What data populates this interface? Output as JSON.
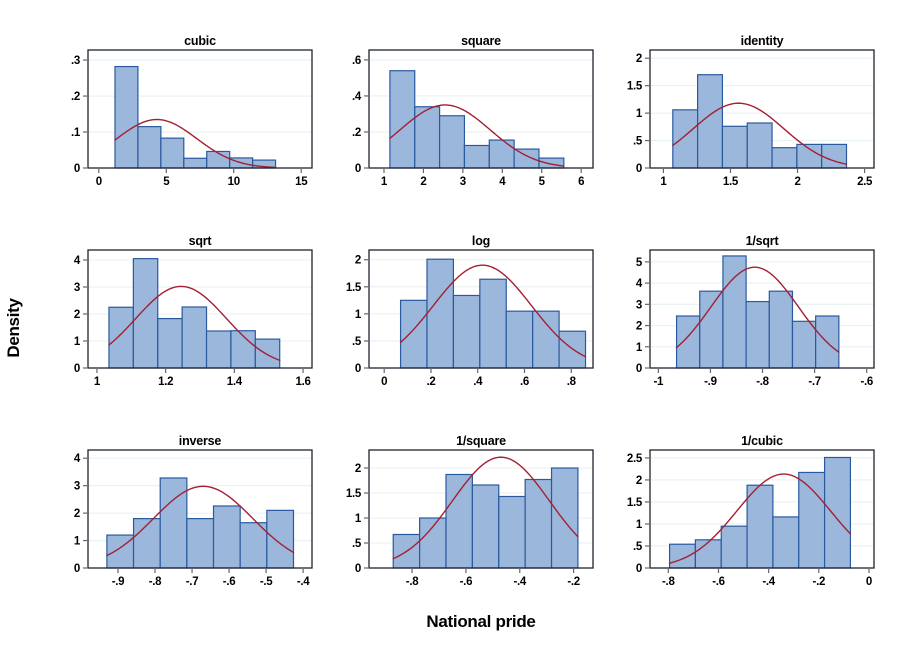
{
  "figure": {
    "ylabel": "Density",
    "xlabel": "National pride",
    "background": "#ffffff",
    "colors": {
      "bar_fill": "#9cb7dc",
      "bar_stroke": "#2a5a9e",
      "curve": "#a32033",
      "grid": "#e8f1f3",
      "frame": "#20242e",
      "tick": "#666666",
      "text": "#000000"
    }
  },
  "chart_data": [
    {
      "type": "histogram",
      "title": "cubic",
      "bin_start": 1.2,
      "bin_width": 1.7,
      "bar_heights": [
        0.282,
        0.115,
        0.083,
        0.027,
        0.046,
        0.028,
        0.022
      ],
      "normal_curve": {
        "mean": 4.3,
        "sd": 2.96,
        "peak_density": 0.135
      },
      "xlim": [
        -0.8,
        15.8
      ],
      "ymax": 0.328,
      "xticks": [
        0,
        5,
        10,
        15
      ],
      "xtick_labels": [
        "0",
        "5",
        "10",
        "15"
      ],
      "yticks": [
        0,
        0.1,
        0.2,
        0.3
      ],
      "ytick_labels": [
        "0",
        ".1",
        ".2",
        ".3"
      ]
    },
    {
      "type": "histogram",
      "title": "square",
      "bin_start": 1.15,
      "bin_width": 0.63,
      "bar_heights": [
        0.54,
        0.34,
        0.29,
        0.125,
        0.155,
        0.105,
        0.055
      ],
      "normal_curve": {
        "mean": 2.55,
        "sd": 1.14,
        "peak_density": 0.35
      },
      "xlim": [
        0.62,
        6.3
      ],
      "ymax": 0.655,
      "xticks": [
        1,
        2,
        3,
        4,
        5,
        6
      ],
      "xtick_labels": [
        "1",
        "2",
        "3",
        "4",
        "5",
        "6"
      ],
      "yticks": [
        0,
        0.2,
        0.4,
        0.6
      ],
      "ytick_labels": [
        "0",
        ".2",
        ".4",
        ".6"
      ]
    },
    {
      "type": "histogram",
      "title": "identity",
      "bin_start": 1.07,
      "bin_width": 0.185,
      "bar_heights": [
        1.06,
        1.7,
        0.76,
        0.82,
        0.37,
        0.43,
        0.43
      ],
      "normal_curve": {
        "mean": 1.56,
        "sd": 0.338,
        "peak_density": 1.18
      },
      "xlim": [
        0.9,
        2.57
      ],
      "ymax": 2.15,
      "xticks": [
        1,
        1.5,
        2,
        2.5
      ],
      "xtick_labels": [
        "1",
        "1.5",
        "2",
        "2.5"
      ],
      "yticks": [
        0,
        0.5,
        1,
        1.5,
        2
      ],
      "ytick_labels": [
        "0",
        ".5",
        "1",
        "1.5",
        "2"
      ]
    },
    {
      "type": "histogram",
      "title": "sqrt",
      "bin_start": 1.035,
      "bin_width": 0.071,
      "bar_heights": [
        2.25,
        4.05,
        1.83,
        2.26,
        1.37,
        1.38,
        1.07
      ],
      "normal_curve": {
        "mean": 1.245,
        "sd": 0.132,
        "peak_density": 3.02
      },
      "xlim": [
        0.974,
        1.626
      ],
      "ymax": 4.37,
      "xticks": [
        1,
        1.2,
        1.4,
        1.6
      ],
      "xtick_labels": [
        "1",
        "1.2",
        "1.4",
        "1.6"
      ],
      "yticks": [
        0,
        1,
        2,
        3,
        4
      ],
      "ytick_labels": [
        "0",
        "1",
        "2",
        "3",
        "4"
      ]
    },
    {
      "type": "histogram",
      "title": "log",
      "bin_start": 0.07,
      "bin_width": 0.113,
      "bar_heights": [
        1.25,
        2.01,
        1.34,
        1.64,
        1.05,
        1.05,
        0.68
      ],
      "normal_curve": {
        "mean": 0.42,
        "sd": 0.21,
        "peak_density": 1.9
      },
      "xlim": [
        -0.065,
        0.893
      ],
      "ymax": 2.18,
      "xticks": [
        0,
        0.2,
        0.4,
        0.6,
        0.8
      ],
      "xtick_labels": [
        "0",
        ".2",
        ".4",
        ".6",
        ".8"
      ],
      "yticks": [
        0,
        0.5,
        1,
        1.5,
        2
      ],
      "ytick_labels": [
        "0",
        ".5",
        "1",
        "1.5",
        "2"
      ]
    },
    {
      "type": "histogram",
      "title": "1/sqrt",
      "bin_start": -0.965,
      "bin_width": 0.0445,
      "bar_heights": [
        2.45,
        3.62,
        5.28,
        3.13,
        3.62,
        2.2,
        2.45
      ],
      "normal_curve": {
        "mean": -0.815,
        "sd": 0.084,
        "peak_density": 4.75
      },
      "xlim": [
        -1.016,
        -0.586
      ],
      "ymax": 5.56,
      "xticks": [
        -1,
        -0.9,
        -0.8,
        -0.7,
        -0.6
      ],
      "xtick_labels": [
        "-1",
        "-.9",
        "-.8",
        "-.7",
        "-.6"
      ],
      "yticks": [
        0,
        1,
        2,
        3,
        4,
        5
      ],
      "ytick_labels": [
        "0",
        "1",
        "2",
        "3",
        "4",
        "5"
      ]
    },
    {
      "type": "histogram",
      "title": "inverse",
      "bin_start": -0.93,
      "bin_width": 0.072,
      "bar_heights": [
        1.2,
        1.8,
        3.28,
        1.8,
        2.26,
        1.65,
        2.1
      ],
      "normal_curve": {
        "mean": -0.67,
        "sd": 0.134,
        "peak_density": 2.97
      },
      "xlim": [
        -0.981,
        -0.376
      ],
      "ymax": 4.3,
      "xticks": [
        -0.9,
        -0.8,
        -0.7,
        -0.6,
        -0.5,
        -0.4
      ],
      "xtick_labels": [
        "-.9",
        "-.8",
        "-.7",
        "-.6",
        "-.5",
        "-.4"
      ],
      "yticks": [
        0,
        1,
        2,
        3,
        4
      ],
      "ytick_labels": [
        "0",
        "1",
        "2",
        "3",
        "4"
      ]
    },
    {
      "type": "histogram",
      "title": "1/square",
      "bin_start": -0.87,
      "bin_width": 0.098,
      "bar_heights": [
        0.67,
        1.0,
        1.87,
        1.66,
        1.43,
        1.77,
        2.0
      ],
      "normal_curve": {
        "mean": -0.47,
        "sd": 0.18,
        "peak_density": 2.22
      },
      "xlim": [
        -0.96,
        -0.128
      ],
      "ymax": 2.36,
      "xticks": [
        -0.8,
        -0.6,
        -0.4,
        -0.2
      ],
      "xtick_labels": [
        "-.8",
        "-.6",
        "-.4",
        "-.2"
      ],
      "yticks": [
        0,
        0.5,
        1,
        1.5,
        2
      ],
      "ytick_labels": [
        "0",
        ".5",
        "1",
        "1.5",
        "2"
      ]
    },
    {
      "type": "histogram",
      "title": "1/cubic",
      "bin_start": -0.795,
      "bin_width": 0.103,
      "bar_heights": [
        0.54,
        0.64,
        0.95,
        1.88,
        1.16,
        2.17,
        2.51
      ],
      "normal_curve": {
        "mean": -0.34,
        "sd": 0.187,
        "peak_density": 2.13
      },
      "xlim": [
        -0.873,
        0.02
      ],
      "ymax": 2.68,
      "xticks": [
        -0.8,
        -0.6,
        -0.4,
        -0.2,
        0
      ],
      "xtick_labels": [
        "-.8",
        "-.6",
        "-.4",
        "-.2",
        "0"
      ],
      "yticks": [
        0,
        0.5,
        1,
        1.5,
        2,
        2.5
      ],
      "ytick_labels": [
        "0",
        ".5",
        "1",
        "1.5",
        "2",
        "2.5"
      ]
    }
  ]
}
